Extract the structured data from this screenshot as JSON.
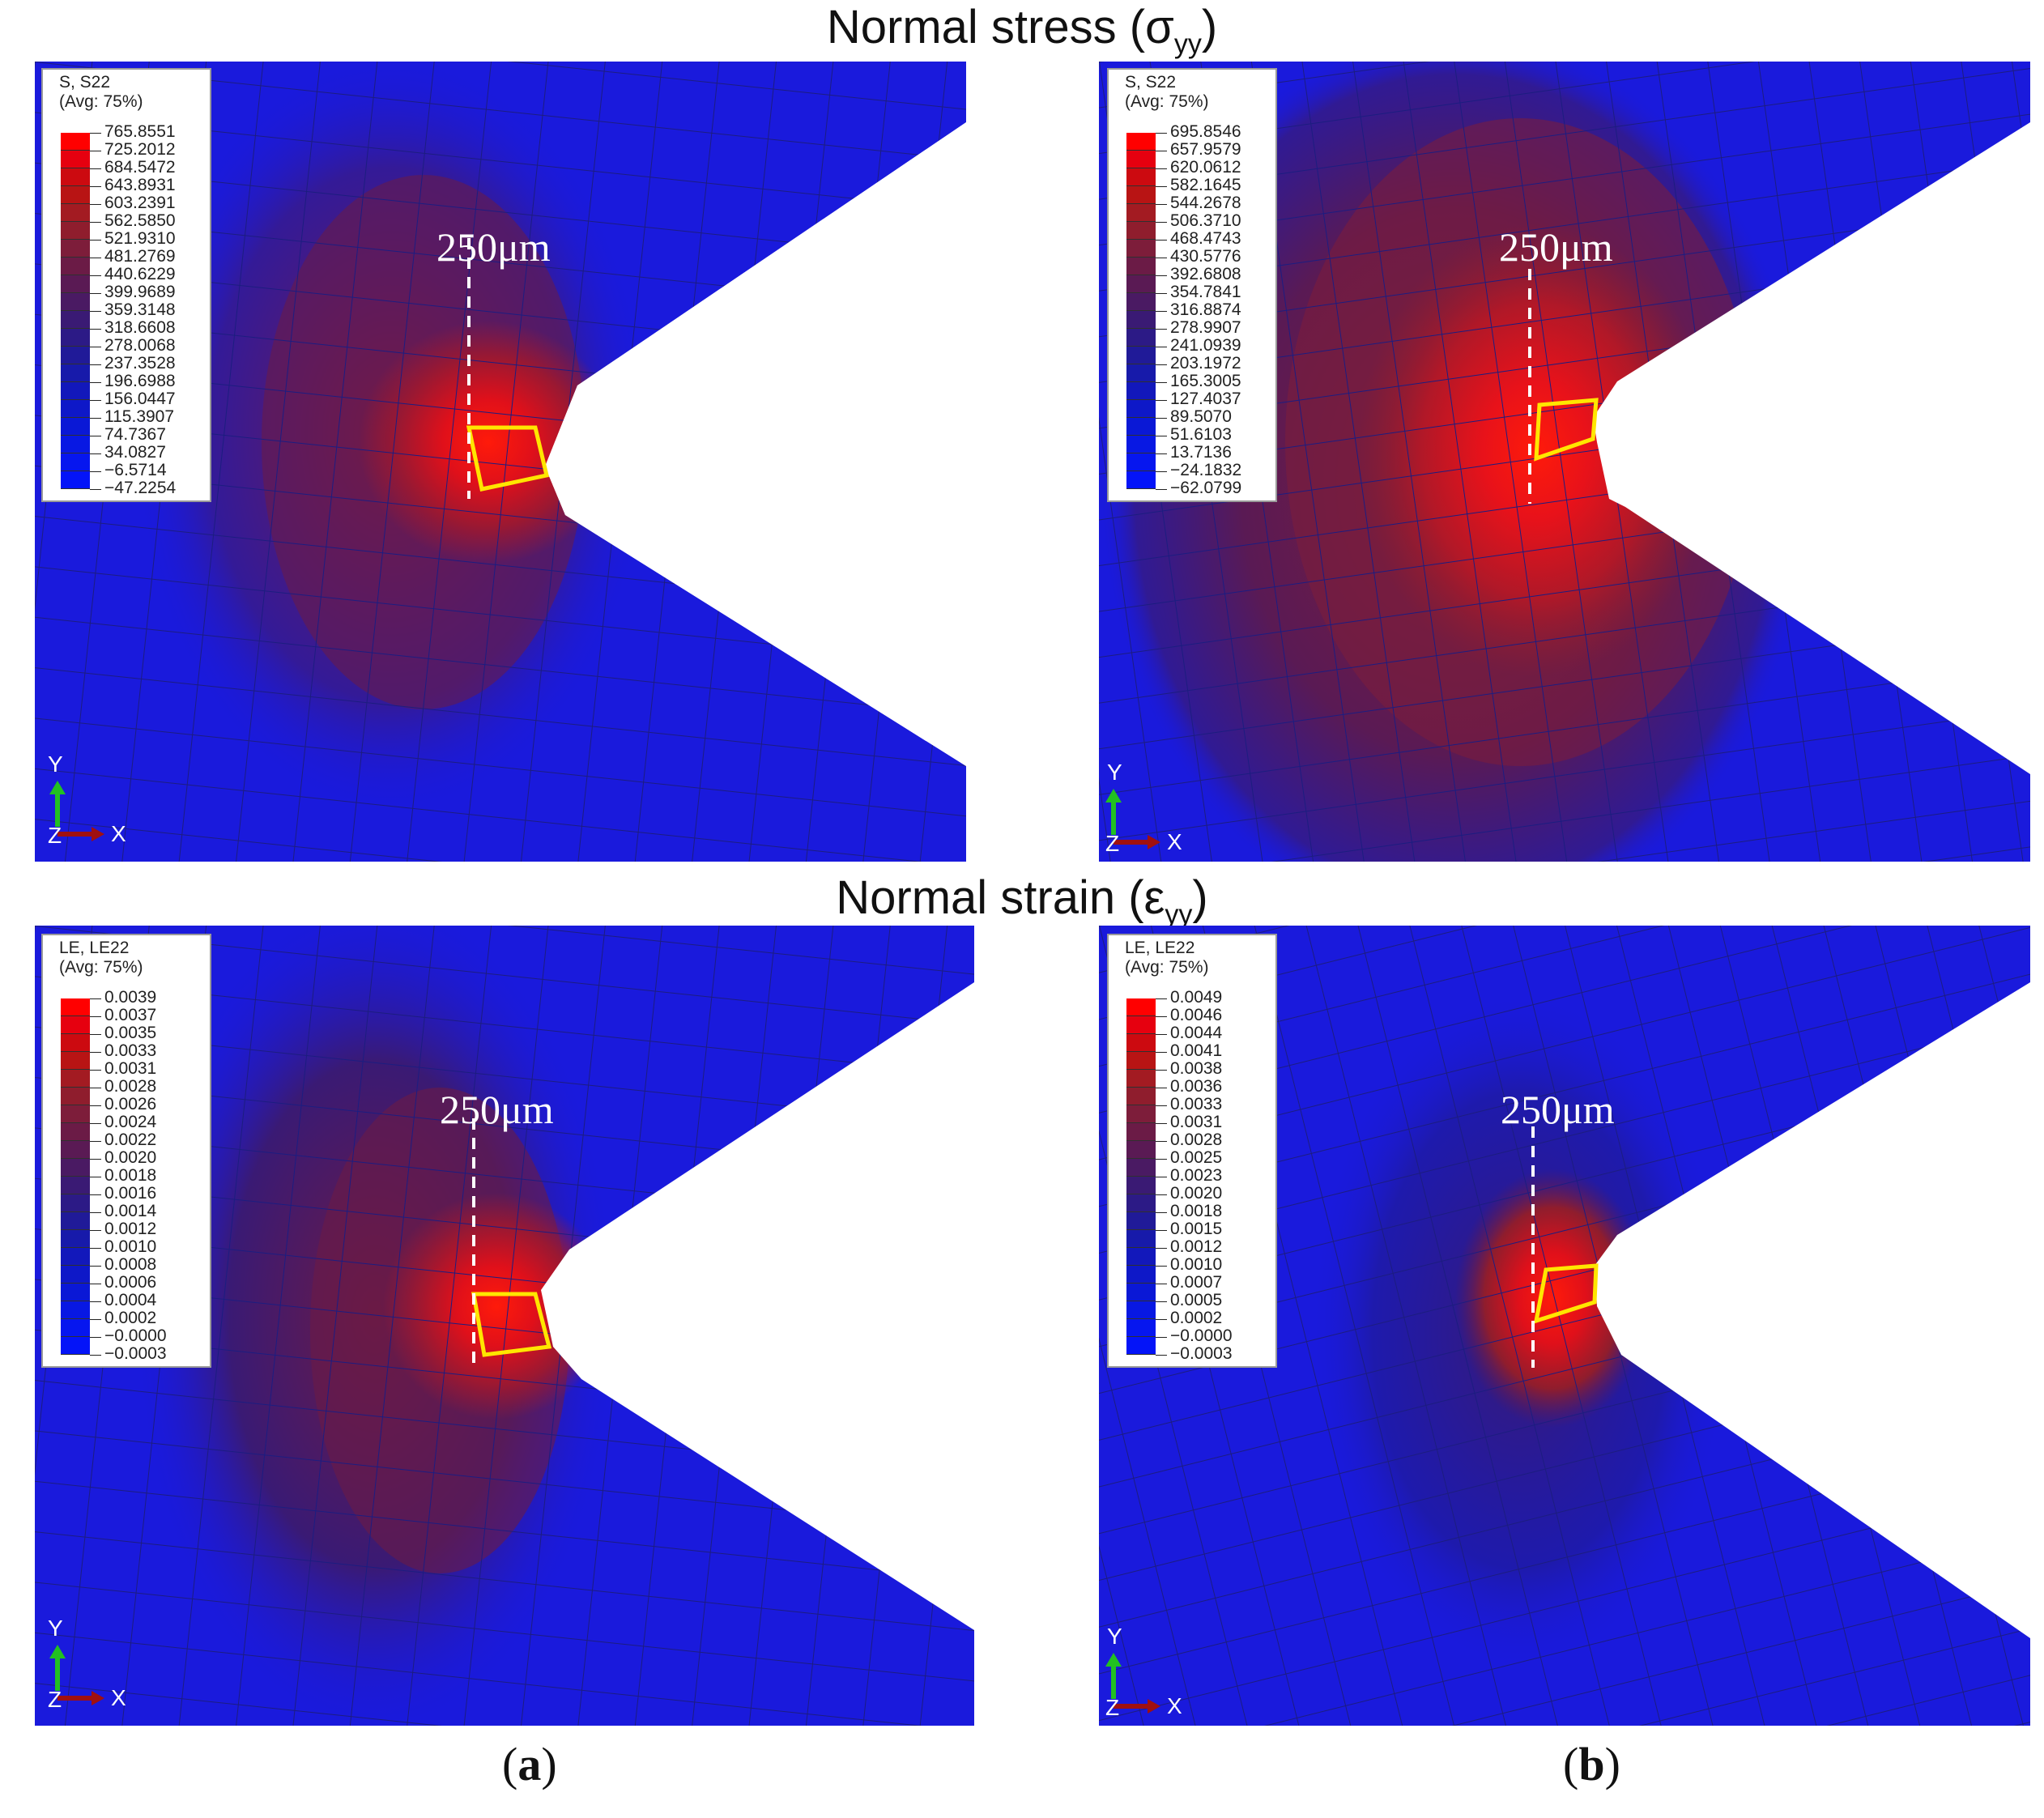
{
  "titles": {
    "stress_prefix": "Normal stress (σ",
    "stress_sub": "yy",
    "stress_suffix": ")",
    "strain_prefix": "Normal strain (ε",
    "strain_sub": "yy",
    "strain_suffix": ")"
  },
  "panels": [
    {
      "legend": {
        "line1": "S, S22",
        "line2": "(Avg: 75%)",
        "values": [
          "765.8551",
          "725.2012",
          "684.5472",
          "643.8931",
          "603.2391",
          "562.5850",
          "521.9310",
          "481.2769",
          "440.6229",
          "399.9689",
          "359.3148",
          "318.6608",
          "278.0068",
          "237.3528",
          "196.6988",
          "156.0447",
          "115.3907",
          "74.7367",
          "34.0827",
          "−6.5714",
          "−47.2254"
        ]
      },
      "marker_label": "250μm",
      "triad": {
        "y": "Y",
        "z": "Z",
        "x": "X"
      }
    },
    {
      "legend": {
        "line1": "S, S22",
        "line2": "(Avg: 75%)",
        "values": [
          "695.8546",
          "657.9579",
          "620.0612",
          "582.1645",
          "544.2678",
          "506.3710",
          "468.4743",
          "430.5776",
          "392.6808",
          "354.7841",
          "316.8874",
          "278.9907",
          "241.0939",
          "203.1972",
          "165.3005",
          "127.4037",
          "89.5070",
          "51.6103",
          "13.7136",
          "−24.1832",
          "−62.0799"
        ]
      },
      "marker_label": "250μm",
      "triad": {
        "y": "Y",
        "z": "Z",
        "x": "X"
      }
    },
    {
      "legend": {
        "line1": "LE, LE22",
        "line2": "(Avg: 75%)",
        "values": [
          "0.0039",
          "0.0037",
          "0.0035",
          "0.0033",
          "0.0031",
          "0.0028",
          "0.0026",
          "0.0024",
          "0.0022",
          "0.0020",
          "0.0018",
          "0.0016",
          "0.0014",
          "0.0012",
          "0.0010",
          "0.0008",
          "0.0006",
          "0.0004",
          "0.0002",
          "−0.0000",
          "−0.0003"
        ]
      },
      "marker_label": "250μm",
      "triad": {
        "y": "Y",
        "z": "Z",
        "x": "X"
      }
    },
    {
      "legend": {
        "line1": "LE, LE22",
        "line2": "(Avg: 75%)",
        "values": [
          "0.0049",
          "0.0046",
          "0.0044",
          "0.0041",
          "0.0038",
          "0.0036",
          "0.0033",
          "0.0031",
          "0.0028",
          "0.0025",
          "0.0023",
          "0.0020",
          "0.0018",
          "0.0015",
          "0.0012",
          "0.0010",
          "0.0007",
          "0.0005",
          "0.0002",
          "−0.0000",
          "−0.0003"
        ]
      },
      "marker_label": "250μm",
      "triad": {
        "y": "Y",
        "z": "Z",
        "x": "X"
      }
    }
  ],
  "captions": [
    {
      "open": "(",
      "letter": "a",
      "close": ")"
    },
    {
      "open": "(",
      "letter": "b",
      "close": ")"
    }
  ],
  "colors": {
    "background_field": "#1a1adc",
    "hotspot": "#ff1a0a",
    "element_outline": "#ffe600",
    "legend_scale": [
      "#ff0000",
      "#e6000f",
      "#cc0a10",
      "#b81414",
      "#a31b22",
      "#8f1d2d",
      "#7d1d3a",
      "#6b1b46",
      "#5a1a54",
      "#4a1a63",
      "#3a1a74",
      "#2c1a86",
      "#201a98",
      "#171aaa",
      "#1218bb",
      "#0e18c8",
      "#0a18d6",
      "#0818e3",
      "#0616ef",
      "#0414f8",
      "#0010ff"
    ]
  }
}
